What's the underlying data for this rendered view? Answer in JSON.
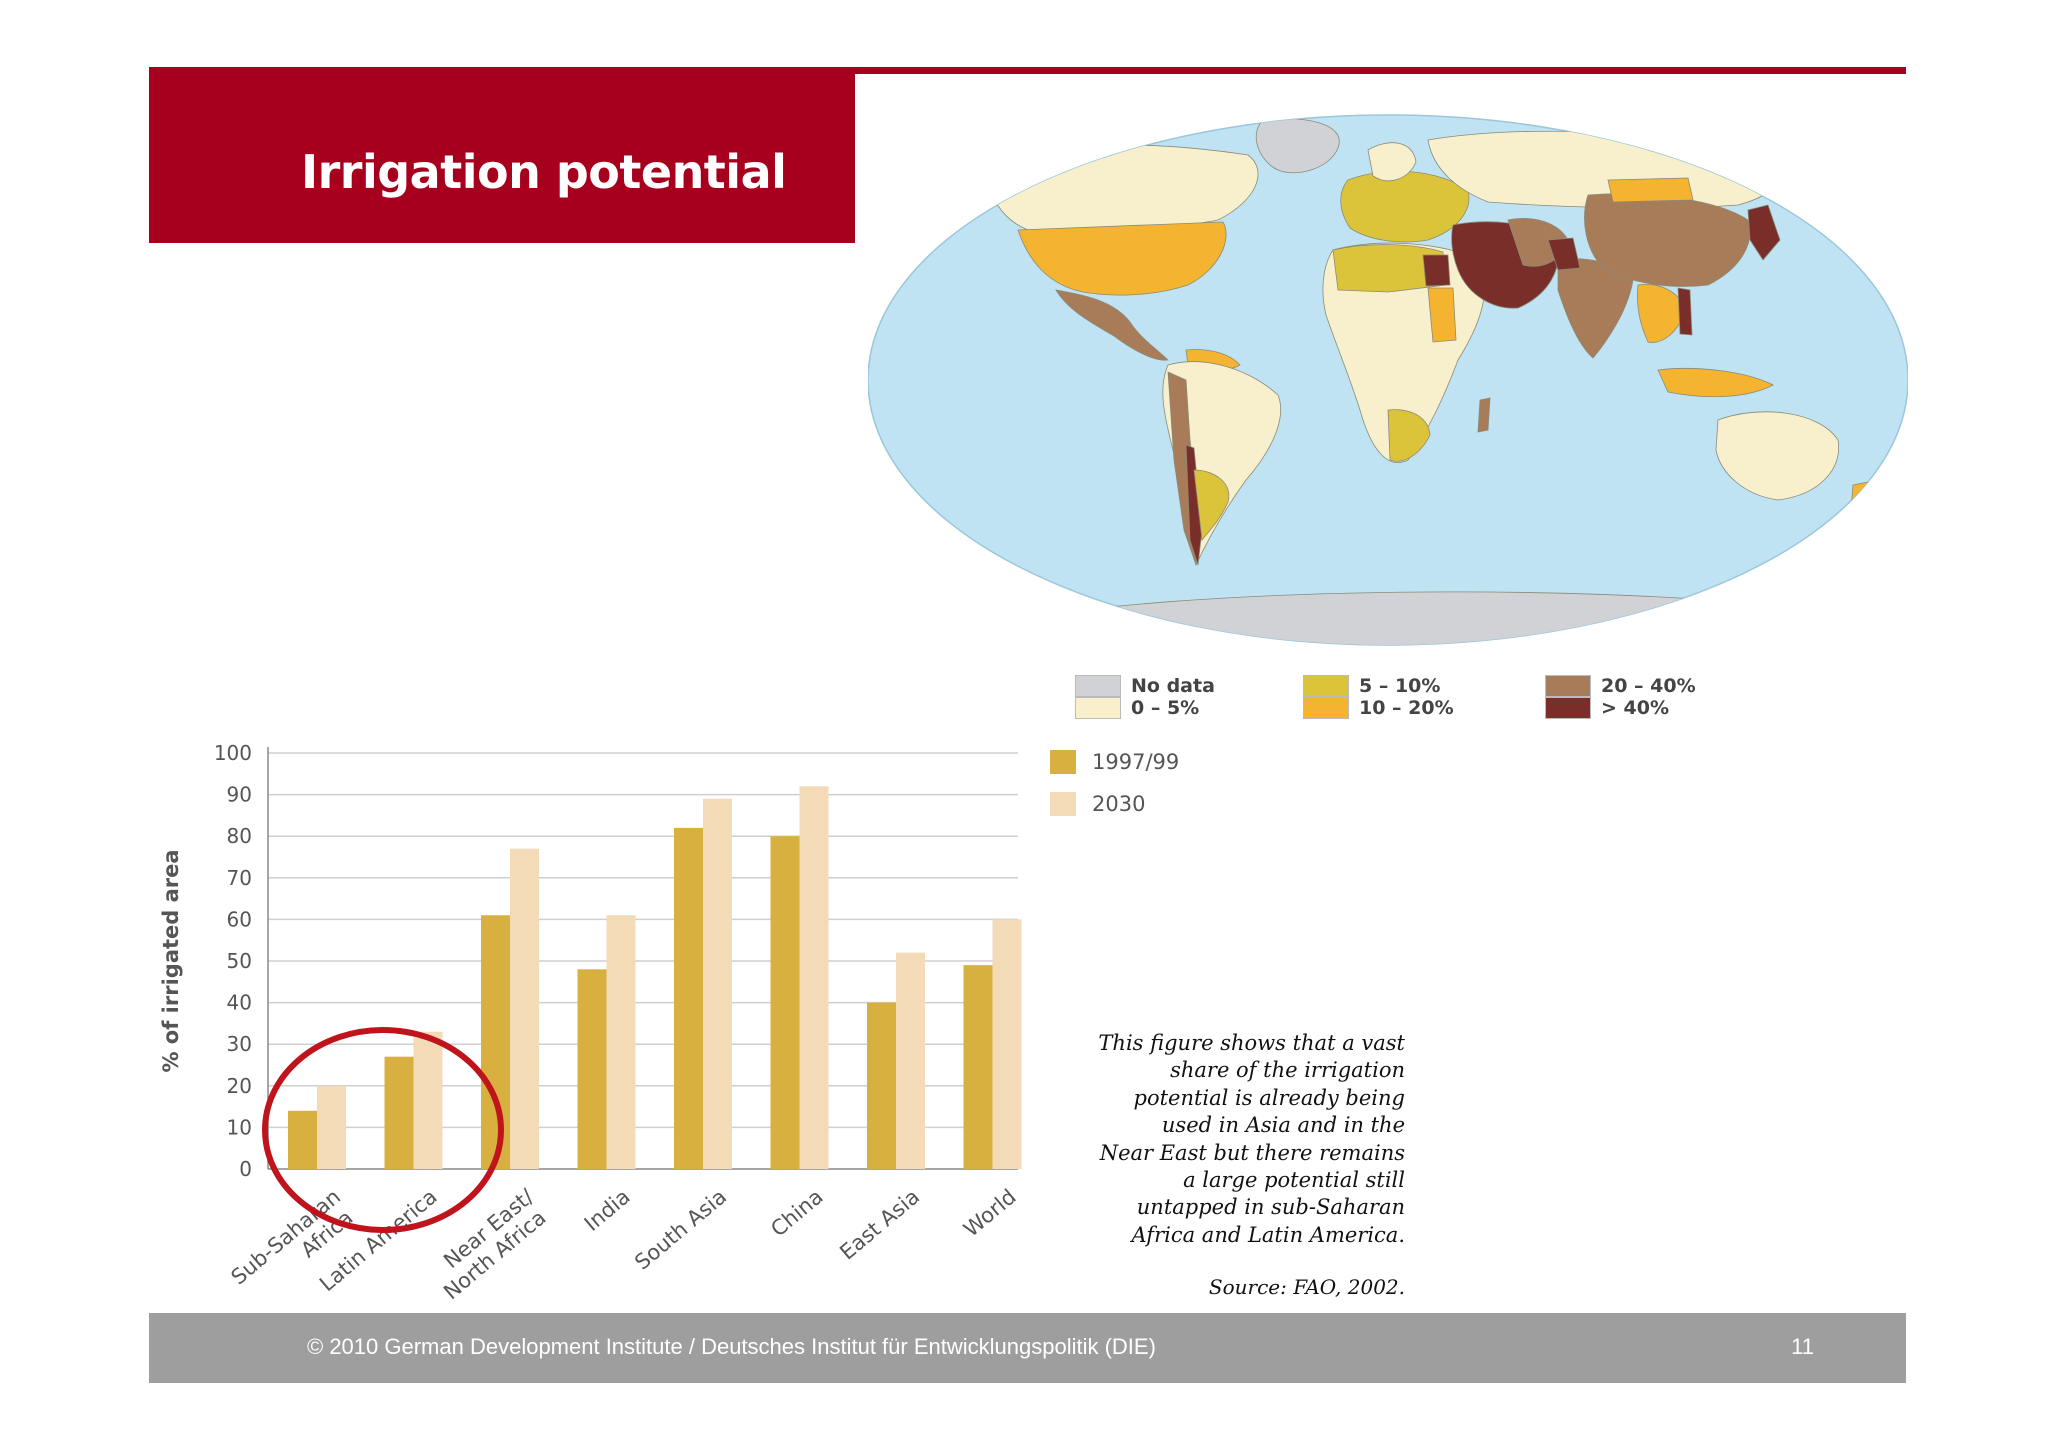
{
  "slide": {
    "title": "Irrigation potential",
    "annotation_lines": [
      "This figure shows that a vast",
      "share of the irrigation",
      "potential is already being",
      "used in Asia and in the",
      "Near East but there remains",
      "a large potential still",
      "untapped in sub-Saharan",
      "Africa and Latin America."
    ],
    "source": "Source: FAO, 2002.",
    "footer": "© 2010  German Development Institute / Deutsches Institut für Entwicklungspolitik (DIE)",
    "page_number": "11",
    "colors": {
      "brand_red": "#a6001e",
      "footer_gray": "#9e9e9e"
    }
  },
  "map_legend": [
    {
      "label": "No data",
      "color": "#d0d2d6"
    },
    {
      "label": "0 – 5%",
      "color": "#f8f0cc"
    },
    {
      "label": "5 – 10%",
      "color": "#dcc43a"
    },
    {
      "label": "10 – 20%",
      "color": "#f4b430"
    },
    {
      "label": "20 – 40%",
      "color": "#a87c58"
    },
    {
      "label": "> 40%",
      "color": "#7a2e2a"
    }
  ],
  "chart_data": {
    "type": "bar",
    "categories": [
      "Sub-Saharan Africa",
      "Latin America",
      "Near East/ North Africa",
      "India",
      "South Asia",
      "China",
      "East Asia",
      "World"
    ],
    "category_label_lines": [
      [
        "Sub-Saharan",
        "Africa"
      ],
      [
        "Latin America"
      ],
      [
        "Near East/",
        "North Africa"
      ],
      [
        "India"
      ],
      [
        "South Asia"
      ],
      [
        "China"
      ],
      [
        "East Asia"
      ],
      [
        "World"
      ]
    ],
    "series": [
      {
        "name": "1997/99",
        "color": "#d8b040",
        "values": [
          14,
          27,
          61,
          48,
          82,
          80,
          40,
          49
        ]
      },
      {
        "name": "2030",
        "color": "#f2dbb6",
        "values": [
          20,
          33,
          77,
          61,
          89,
          92,
          52,
          60
        ]
      }
    ],
    "ylabel": "% of irrigated area",
    "ylim": [
      0,
      100
    ],
    "yticks": [
      0,
      10,
      20,
      30,
      40,
      50,
      60,
      70,
      80,
      90,
      100
    ],
    "grid": true,
    "legend_position": "top-right",
    "highlight": {
      "shape": "circle",
      "color": "#c0141c",
      "categories": [
        "Sub-Saharan Africa",
        "Latin America"
      ]
    }
  }
}
